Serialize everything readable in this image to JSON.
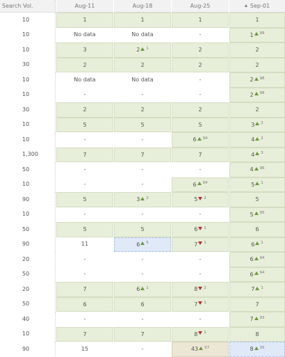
{
  "table": {
    "header": [
      "Search Vol.",
      "Aug-11",
      "Aug-18",
      "Aug-25",
      "Sep-01"
    ],
    "rows": [
      {
        "volume": "10",
        "cells": [
          {
            "value": "1",
            "fill": "green"
          },
          {
            "value": "1",
            "fill": "green"
          },
          {
            "value": "1",
            "fill": "green"
          },
          {
            "value": "1",
            "fill": "green"
          }
        ]
      },
      {
        "volume": "10",
        "cells": [
          {
            "value": "No data"
          },
          {
            "value": "No data"
          },
          {
            "value": "-"
          },
          {
            "value": "1",
            "change": 99,
            "trend": "up",
            "fill": "green"
          }
        ]
      },
      {
        "volume": "10",
        "cells": [
          {
            "value": "3",
            "fill": "green"
          },
          {
            "value": "2",
            "change": 1,
            "trend": "up",
            "fill": "green"
          },
          {
            "value": "2",
            "fill": "green"
          },
          {
            "value": "2",
            "fill": "green"
          }
        ]
      },
      {
        "volume": "30",
        "cells": [
          {
            "value": "2",
            "fill": "green"
          },
          {
            "value": "2",
            "fill": "green"
          },
          {
            "value": "2",
            "fill": "green"
          },
          {
            "value": "2",
            "fill": "green"
          }
        ]
      },
      {
        "volume": "10",
        "cells": [
          {
            "value": "No data"
          },
          {
            "value": "No data"
          },
          {
            "value": "-"
          },
          {
            "value": "2",
            "change": 98,
            "trend": "up",
            "fill": "green"
          }
        ]
      },
      {
        "volume": "10",
        "cells": [
          {
            "value": "-"
          },
          {
            "value": "-"
          },
          {
            "value": "-"
          },
          {
            "value": "2",
            "change": 98,
            "trend": "up",
            "fill": "green"
          }
        ]
      },
      {
        "volume": "30",
        "cells": [
          {
            "value": "2",
            "fill": "green"
          },
          {
            "value": "2",
            "fill": "green"
          },
          {
            "value": "2",
            "fill": "green"
          },
          {
            "value": "2",
            "fill": "green"
          }
        ]
      },
      {
        "volume": "10",
        "cells": [
          {
            "value": "5",
            "fill": "green"
          },
          {
            "value": "5",
            "fill": "green"
          },
          {
            "value": "5",
            "fill": "green"
          },
          {
            "value": "3",
            "change": 2,
            "trend": "up",
            "fill": "green"
          }
        ]
      },
      {
        "volume": "10",
        "cells": [
          {
            "value": "-"
          },
          {
            "value": "-"
          },
          {
            "value": "6",
            "change": 94,
            "trend": "up",
            "fill": "green"
          },
          {
            "value": "4",
            "change": 2,
            "trend": "up",
            "fill": "green"
          }
        ]
      },
      {
        "volume": "1,300",
        "cells": [
          {
            "value": "7",
            "fill": "green"
          },
          {
            "value": "7",
            "fill": "green"
          },
          {
            "value": "7",
            "fill": "green"
          },
          {
            "value": "4",
            "change": 3,
            "trend": "up",
            "fill": "green"
          }
        ]
      },
      {
        "volume": "50",
        "cells": [
          {
            "value": "-"
          },
          {
            "value": "-"
          },
          {
            "value": "-"
          },
          {
            "value": "4",
            "change": 96,
            "trend": "up",
            "fill": "green"
          }
        ]
      },
      {
        "volume": "10",
        "cells": [
          {
            "value": "-"
          },
          {
            "value": "-"
          },
          {
            "value": "6",
            "change": 94,
            "trend": "up",
            "fill": "green"
          },
          {
            "value": "5",
            "change": 1,
            "trend": "up",
            "fill": "green"
          }
        ]
      },
      {
        "volume": "90",
        "cells": [
          {
            "value": "5",
            "fill": "green"
          },
          {
            "value": "3",
            "change": 2,
            "trend": "up",
            "fill": "green"
          },
          {
            "value": "5",
            "change": 2,
            "trend": "down",
            "fill": "green"
          },
          {
            "value": "5",
            "fill": "green"
          }
        ]
      },
      {
        "volume": "10",
        "cells": [
          {
            "value": "-"
          },
          {
            "value": "-"
          },
          {
            "value": "-"
          },
          {
            "value": "5",
            "change": 95,
            "trend": "up",
            "fill": "green"
          }
        ]
      },
      {
        "volume": "50",
        "cells": [
          {
            "value": "5",
            "fill": "green"
          },
          {
            "value": "5",
            "fill": "green"
          },
          {
            "value": "6",
            "change": 1,
            "trend": "down",
            "fill": "green"
          },
          {
            "value": "6",
            "fill": "green"
          }
        ]
      },
      {
        "volume": "90",
        "cells": [
          {
            "value": "11"
          },
          {
            "value": "6",
            "change": 5,
            "trend": "up",
            "fill": "blue"
          },
          {
            "value": "7",
            "change": 1,
            "trend": "down",
            "fill": "green"
          },
          {
            "value": "6",
            "change": 1,
            "trend": "up",
            "fill": "green"
          }
        ]
      },
      {
        "volume": "20",
        "cells": [
          {
            "value": "-"
          },
          {
            "value": "-"
          },
          {
            "value": "-"
          },
          {
            "value": "6",
            "change": 94,
            "trend": "up",
            "fill": "green"
          }
        ]
      },
      {
        "volume": "50",
        "cells": [
          {
            "value": "-"
          },
          {
            "value": "-"
          },
          {
            "value": "-"
          },
          {
            "value": "6",
            "change": 94,
            "trend": "up",
            "fill": "green"
          }
        ]
      },
      {
        "volume": "20",
        "cells": [
          {
            "value": "7",
            "fill": "green"
          },
          {
            "value": "6",
            "change": 1,
            "trend": "up",
            "fill": "green"
          },
          {
            "value": "8",
            "change": 2,
            "trend": "down",
            "fill": "green"
          },
          {
            "value": "7",
            "change": 1,
            "trend": "up",
            "fill": "green"
          }
        ]
      },
      {
        "volume": "50",
        "cells": [
          {
            "value": "6",
            "fill": "green"
          },
          {
            "value": "6",
            "fill": "green"
          },
          {
            "value": "7",
            "change": 1,
            "trend": "down",
            "fill": "green"
          },
          {
            "value": "7",
            "fill": "green"
          }
        ]
      },
      {
        "volume": "40",
        "cells": [
          {
            "value": "-"
          },
          {
            "value": "-"
          },
          {
            "value": "-"
          },
          {
            "value": "7",
            "change": 93,
            "trend": "up",
            "fill": "green"
          }
        ]
      },
      {
        "volume": "10",
        "cells": [
          {
            "value": "7",
            "fill": "green"
          },
          {
            "value": "7",
            "fill": "green"
          },
          {
            "value": "8",
            "change": 1,
            "trend": "down",
            "fill": "green"
          },
          {
            "value": "8",
            "fill": "green"
          }
        ]
      },
      {
        "volume": "90",
        "cells": [
          {
            "value": "15"
          },
          {
            "value": "-"
          },
          {
            "value": "43",
            "change": 57,
            "trend": "up",
            "fill": "tan"
          },
          {
            "value": "8",
            "change": 35,
            "trend": "up",
            "fill": "blue"
          }
        ]
      }
    ]
  }
}
